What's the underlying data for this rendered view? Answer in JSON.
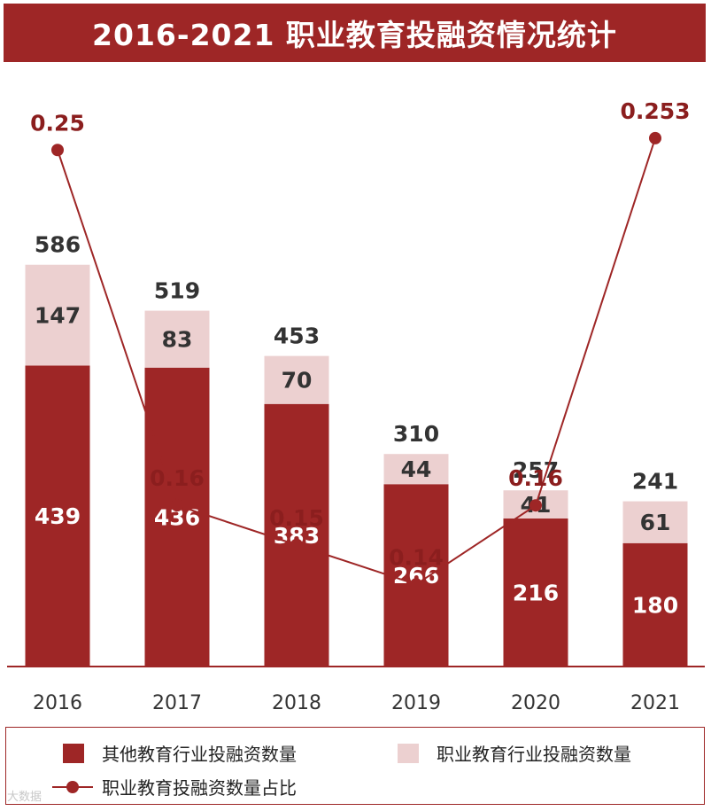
{
  "title": "2016-2021 职业教育投融资情况统计",
  "colors": {
    "dark": "#9e2626",
    "light": "#ecd0d0",
    "line": "#9e2626"
  },
  "chart_data": {
    "type": "bar",
    "stacked": true,
    "title": "2016-2021 职业教育投融资情况统计",
    "categories": [
      "2016",
      "2017",
      "2018",
      "2019",
      "2020",
      "2021"
    ],
    "series": [
      {
        "name": "其他教育行业投融资数量",
        "type": "bar",
        "values": [
          439,
          436,
          383,
          266,
          216,
          180
        ]
      },
      {
        "name": "职业教育行业投融资数量",
        "type": "bar",
        "values": [
          147,
          83,
          70,
          44,
          41,
          61
        ]
      },
      {
        "name": "职业教育投融资数量占比",
        "type": "line",
        "values": [
          0.25,
          0.16,
          0.15,
          0.14,
          0.16,
          0.253
        ]
      }
    ],
    "totals": [
      586,
      519,
      453,
      310,
      257,
      241
    ],
    "ratio_labels": [
      "0.25",
      "0.16",
      "0.15",
      "0.14",
      "0.16",
      "0.253"
    ]
  },
  "legend": {
    "item1": "其他教育行业投融资数量",
    "item2": "职业教育行业投融资数量",
    "item3": "职业教育投融资数量占比"
  },
  "watermark": "大数据"
}
